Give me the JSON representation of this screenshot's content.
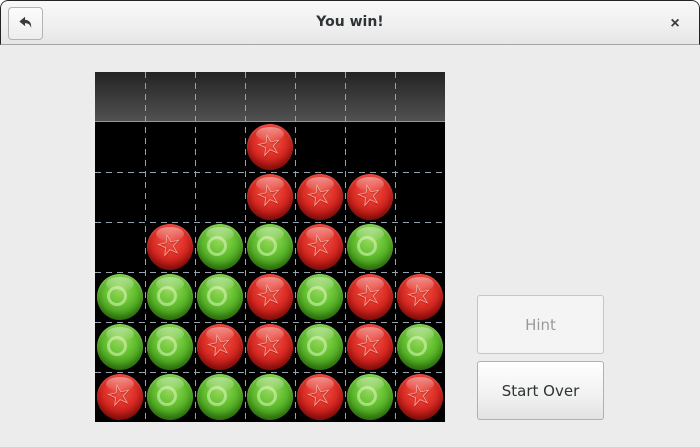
{
  "window": {
    "title": "You win!"
  },
  "header": {
    "back_icon": "back-arrow",
    "close_icon": "×"
  },
  "buttons": {
    "hint_label": "Hint",
    "hint_enabled": false,
    "start_over_label": "Start Over"
  },
  "board": {
    "columns": 7,
    "rows": 7,
    "cell_size": 50,
    "drop_zone_row": 0,
    "markers": {
      "R": "star",
      "G": "circle",
      "star_char": "☆"
    },
    "cells": [
      [
        "",
        "",
        "",
        "",
        "",
        "",
        ""
      ],
      [
        "",
        "",
        "",
        "R",
        "",
        "",
        ""
      ],
      [
        "",
        "",
        "",
        "R",
        "R",
        "R",
        ""
      ],
      [
        "",
        "R",
        "G",
        "G",
        "R",
        "G",
        ""
      ],
      [
        "G",
        "G",
        "G",
        "R",
        "G",
        "R",
        "R"
      ],
      [
        "G",
        "G",
        "R",
        "R",
        "G",
        "R",
        "G"
      ],
      [
        "R",
        "G",
        "G",
        "G",
        "R",
        "G",
        "R"
      ]
    ]
  },
  "colors": {
    "red_ball": "#d5261d",
    "green_ball": "#58b42a",
    "board_background": "#000000",
    "drop_zone_gradient_top": "#232323",
    "drop_zone_gradient_bottom": "#515151",
    "grid_line": "#96a2b0",
    "window_background": "#ececec"
  }
}
